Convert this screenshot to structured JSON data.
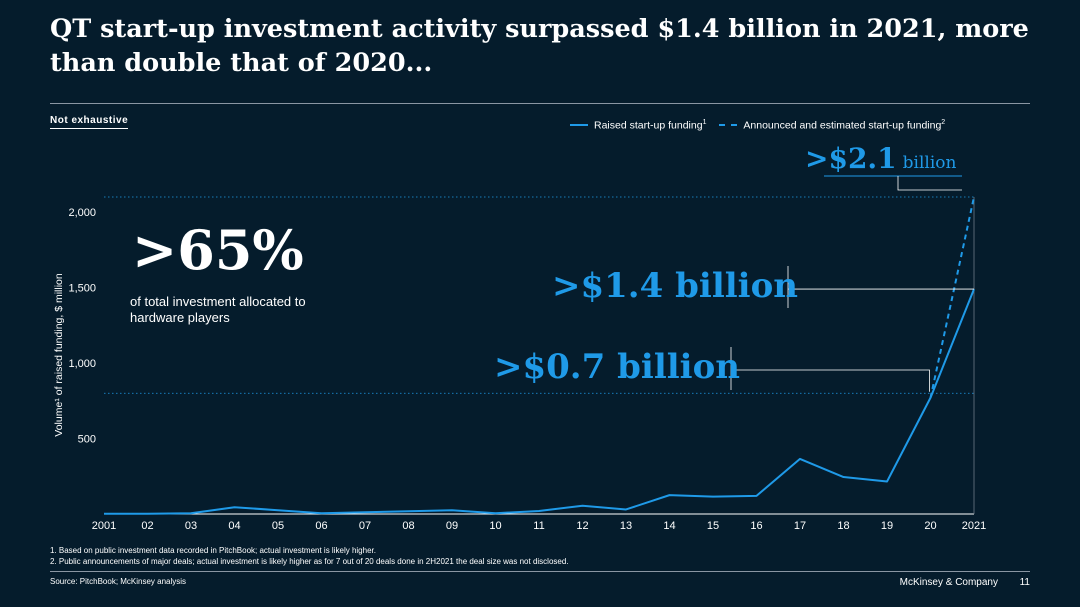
{
  "title": "QT start-up investment activity surpassed $1.4 billion in 2021, more than double that of 2020...",
  "tag": "Not exhaustive",
  "legend": {
    "raised_label": "Raised start-up funding",
    "raised_sup": "1",
    "announced_label": "Announced and estimated start-up funding",
    "announced_sup": "2"
  },
  "highlight": {
    "value": ">65%",
    "note": "of total investment allocated to hardware players"
  },
  "callouts": {
    "c14": ">$1.4 billion",
    "c07": ">$0.7 billion",
    "c21_value": ">$2.1",
    "c21_unit": "billion"
  },
  "footnotes": [
    "1. Based on public investment data recorded in PitchBook; actual investment is likely higher.",
    "2. Public announcements of major deals; actual investment is likely higher as for  7 out of 20 deals done in 2H2021 the deal size was not disclosed."
  ],
  "source": "Source: PitchBook; McKinsey analysis",
  "brand": "McKinsey & Company",
  "page_number": "11",
  "colors": {
    "background": "#051c2c",
    "accent": "#1f9ae8",
    "text": "#ffffff"
  },
  "chart_data": {
    "type": "line",
    "ylabel": "Volume¹ of raised funding, $ million",
    "xlabel": "",
    "ylim": [
      0,
      2100
    ],
    "yticks": [
      500,
      1000,
      1500,
      2000
    ],
    "ytick_labels": [
      "500",
      "1,000",
      "1,500",
      "2,000"
    ],
    "categories": [
      "2001",
      "02",
      "03",
      "04",
      "05",
      "06",
      "07",
      "08",
      "09",
      "10",
      "11",
      "12",
      "13",
      "14",
      "15",
      "16",
      "17",
      "18",
      "19",
      "20",
      "2021"
    ],
    "series": [
      {
        "name": "Raised start-up funding",
        "style": "solid",
        "values": [
          2,
          2,
          5,
          45,
          25,
          5,
          12,
          18,
          25,
          5,
          20,
          55,
          30,
          125,
          115,
          120,
          365,
          245,
          215,
          770,
          1490
        ]
      },
      {
        "name": "Announced and estimated start-up funding",
        "style": "dashed",
        "x": [
          "20",
          "2021"
        ],
        "values": [
          770,
          2100
        ]
      }
    ],
    "reference_lines": [
      {
        "value": 2100,
        "style": "dotted"
      },
      {
        "value": 800,
        "style": "dotted"
      }
    ]
  }
}
